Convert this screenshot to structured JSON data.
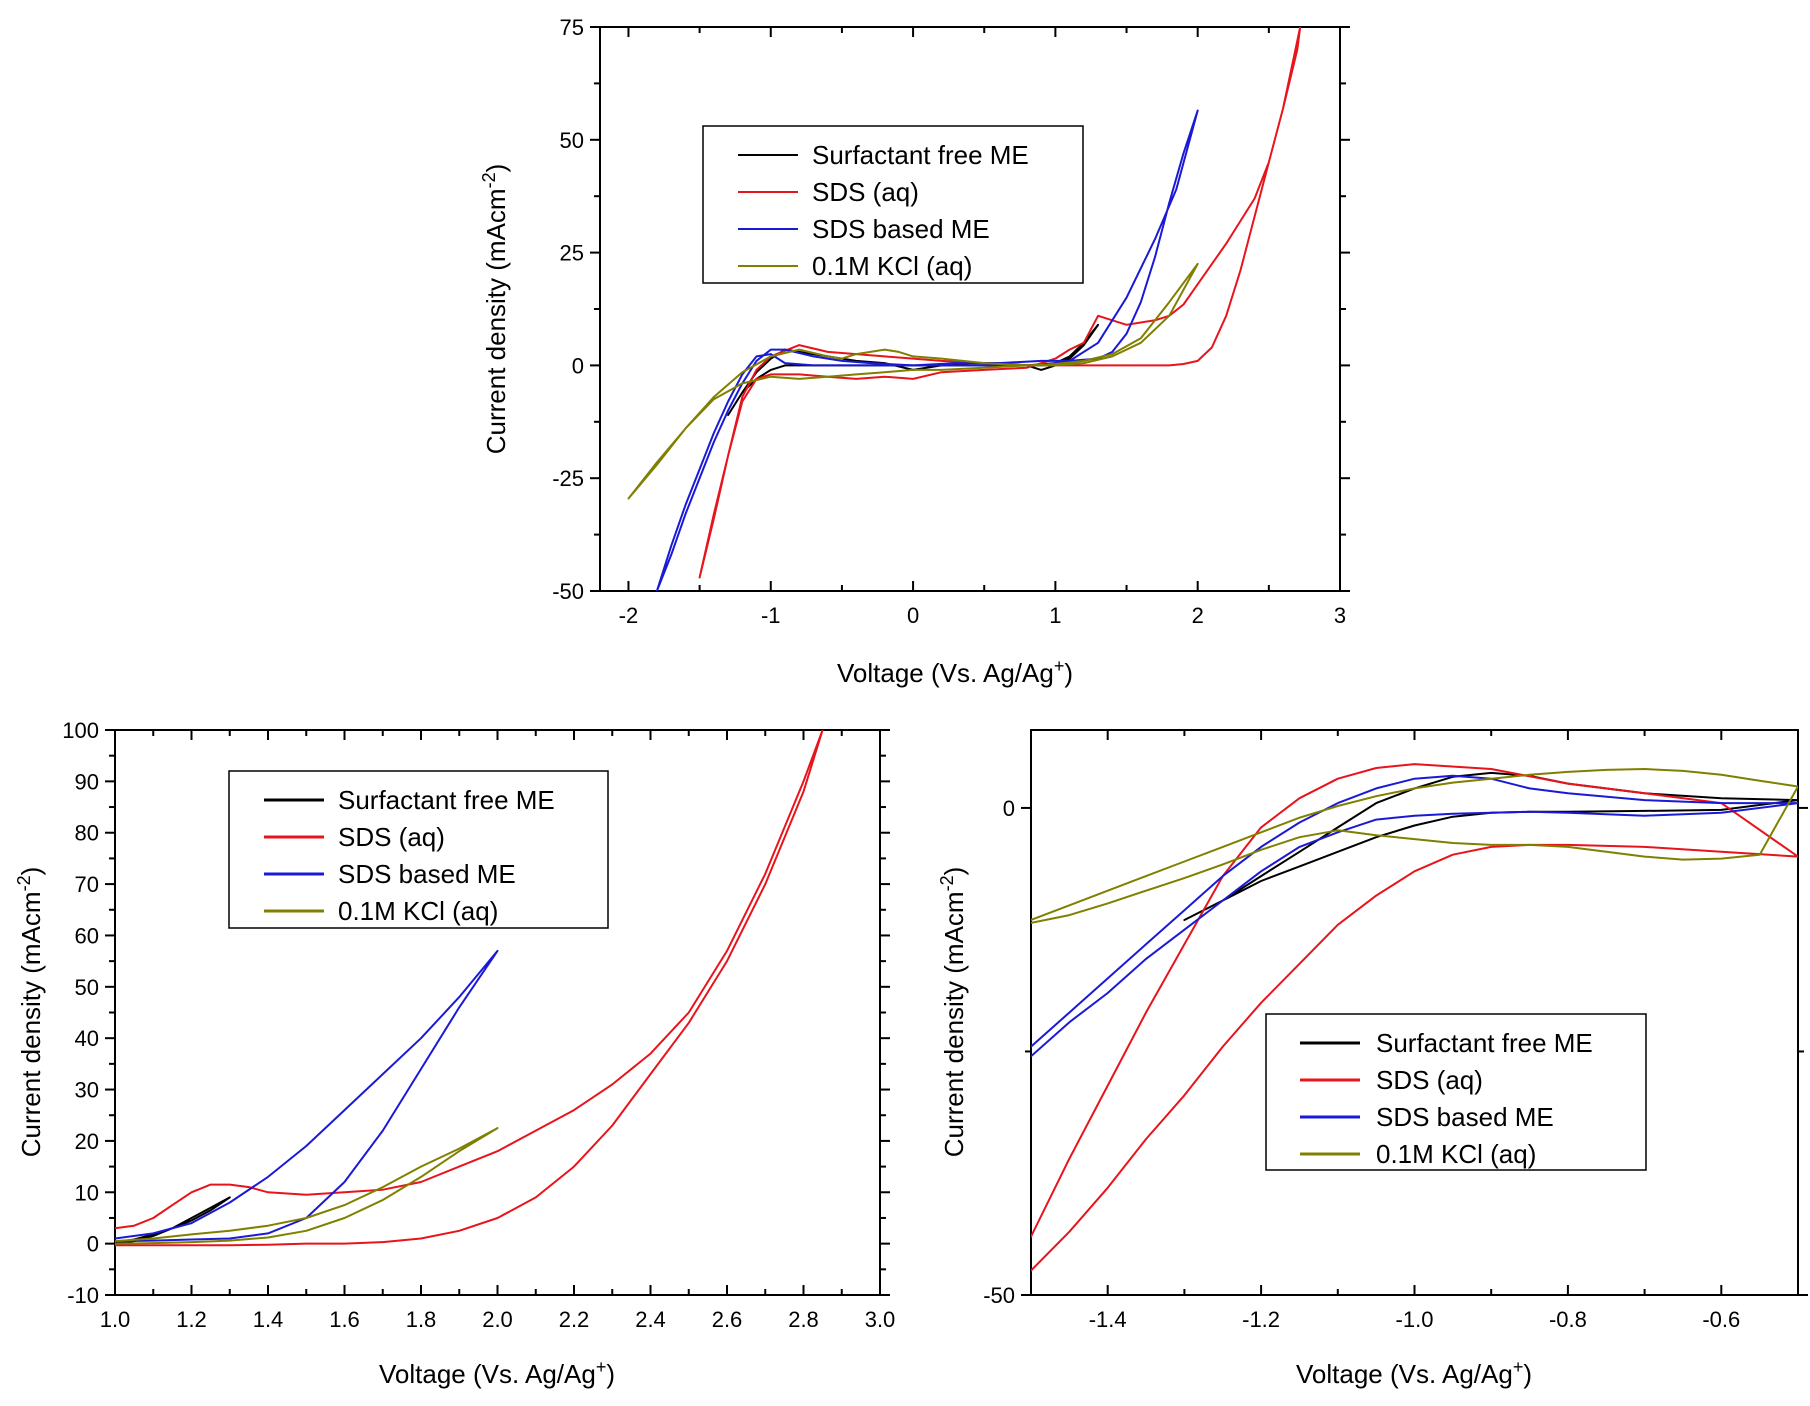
{
  "chart_data": [
    {
      "type": "line",
      "id": "top",
      "xlabel": "Voltage (Vs. Ag/Ag",
      "xlabel_sup": "+",
      "xlabel_end": ")",
      "ylabel": "Current density (mAcm",
      "ylabel_sup": "-2",
      "ylabel_end": ")",
      "xlim": [
        -2.2,
        3
      ],
      "ylim": [
        -50,
        75
      ],
      "xticks": [
        -2,
        -1,
        0,
        1,
        2,
        3
      ],
      "xtick_labels": [
        "-2",
        "-1",
        "0",
        "1",
        "2",
        "3"
      ],
      "yticks": [
        -50,
        -25,
        0,
        25,
        50,
        75
      ],
      "ytick_labels": [
        "-50",
        "-25",
        "0",
        "25",
        "50",
        "75"
      ],
      "legend_position": "upper-left",
      "series": [
        {
          "name": "Surfactant free ME",
          "color": "#000000",
          "x": [
            -1.3,
            -1.2,
            -1.1,
            -1.0,
            -0.9,
            -0.8,
            -0.6,
            -0.4,
            -0.2,
            0,
            0.2,
            0.4,
            0.6,
            0.8,
            0.9,
            1.0,
            1.1,
            1.2,
            1.3,
            1.2,
            1.1,
            1.0,
            0.8,
            0.6,
            0.4,
            0.2,
            0,
            -0.2,
            -0.4,
            -0.6,
            -0.8,
            -0.9,
            -1.0,
            -1.1,
            -1.2,
            -1.3
          ],
          "y": [
            -11,
            -6,
            -1.5,
            1.5,
            3.5,
            3,
            2,
            1,
            0.5,
            -1,
            0,
            0.5,
            0.5,
            0,
            -1,
            0,
            1.5,
            4.5,
            9,
            5,
            2,
            0.5,
            0,
            0,
            0,
            0,
            0,
            0,
            0,
            0,
            0,
            0,
            -1,
            -3,
            -6,
            -11
          ]
        },
        {
          "name": "SDS (aq)",
          "color": "#e8141c",
          "x": [
            -1.5,
            -1.4,
            -1.3,
            -1.2,
            -1.1,
            -1.0,
            -0.8,
            -0.6,
            -0.4,
            -0.2,
            0,
            0.2,
            0.5,
            0.8,
            1.0,
            1.1,
            1.2,
            1.3,
            1.4,
            1.5,
            1.6,
            1.7,
            1.8,
            1.9,
            2.0,
            2.2,
            2.4,
            2.5,
            2.6,
            2.7,
            2.72,
            2.6,
            2.5,
            2.4,
            2.3,
            2.2,
            2.1,
            2.0,
            1.9,
            1.8,
            1.6,
            1.4,
            1.2,
            1.0,
            0.8,
            0.5,
            0.2,
            0,
            -0.2,
            -0.4,
            -0.6,
            -0.8,
            -1.0,
            -1.1,
            -1.2,
            -1.3,
            -1.4,
            -1.5
          ],
          "y": [
            -47,
            -33,
            -20,
            -8,
            -3,
            -2,
            -2,
            -2.5,
            -3,
            -2.5,
            -3,
            -1.5,
            -1,
            -0.5,
            1.5,
            3.5,
            5,
            11,
            10,
            9,
            9.5,
            10,
            11,
            13.5,
            18,
            27,
            37,
            45,
            57,
            70,
            75,
            57,
            45,
            33,
            21,
            11,
            4,
            1,
            0.3,
            0,
            0,
            0,
            0,
            0,
            0,
            0.5,
            1,
            1.5,
            2,
            2.5,
            3,
            4.5,
            2,
            -1,
            -7,
            -20,
            -34,
            -47
          ]
        },
        {
          "name": "SDS based ME",
          "color": "#1a1ad6",
          "x": [
            -1.8,
            -1.7,
            -1.6,
            -1.5,
            -1.4,
            -1.3,
            -1.2,
            -1.1,
            -1.0,
            -0.9,
            -0.7,
            -0.5,
            -0.3,
            0,
            0.3,
            0.6,
            0.9,
            1.1,
            1.3,
            1.5,
            1.7,
            1.85,
            2.0,
            1.9,
            1.8,
            1.7,
            1.6,
            1.5,
            1.4,
            1.3,
            1.1,
            0.9,
            0.6,
            0.3,
            0,
            -0.3,
            -0.5,
            -0.7,
            -0.9,
            -1.0,
            -1.1,
            -1.2,
            -1.3,
            -1.4,
            -1.5,
            -1.6,
            -1.7,
            -1.8
          ],
          "y": [
            -50,
            -42,
            -33,
            -25,
            -17,
            -10,
            -4,
            1,
            3.5,
            3.5,
            2,
            1,
            0.5,
            0,
            0,
            0,
            0,
            1,
            5,
            15,
            28,
            39,
            56.5,
            47,
            36,
            24,
            14,
            7,
            3,
            1.5,
            1,
            1,
            0.5,
            0.5,
            0,
            0,
            0,
            0,
            0.5,
            2.5,
            2,
            -2,
            -8,
            -15,
            -23,
            -31,
            -40,
            -50
          ]
        },
        {
          "name": "0.1M KCl (aq)",
          "color": "#808000",
          "x": [
            -2.0,
            -1.8,
            -1.6,
            -1.4,
            -1.2,
            -1.0,
            -0.8,
            -0.6,
            -0.5,
            -0.4,
            -0.3,
            -0.2,
            -0.1,
            0,
            0.2,
            0.5,
            0.8,
            1.0,
            1.2,
            1.4,
            1.6,
            1.8,
            2.0,
            1.8,
            1.6,
            1.4,
            1.2,
            1.0,
            0.8,
            0.5,
            0.2,
            0,
            -0.2,
            -0.4,
            -0.6,
            -0.8,
            -1.0,
            -1.2,
            -1.4,
            -1.6,
            -1.8,
            -2.0
          ],
          "y": [
            -29.5,
            -22,
            -14,
            -7,
            -1.5,
            2,
            3.5,
            2,
            1.5,
            2.5,
            3,
            3.5,
            3,
            2,
            1.5,
            0.5,
            0,
            0,
            0.5,
            2,
            5,
            11,
            22.5,
            14,
            6,
            2.5,
            1,
            0.3,
            0,
            -0.5,
            -1,
            -1,
            -1.5,
            -2,
            -2.5,
            -3,
            -2.5,
            -4,
            -7.5,
            -14,
            -21.5,
            -29.5
          ]
        }
      ]
    },
    {
      "type": "line",
      "id": "bottom-left",
      "xlabel": "Voltage (Vs. Ag/Ag",
      "xlabel_sup": "+",
      "xlabel_end": ")",
      "ylabel": "Current density (mAcm",
      "ylabel_sup": "-2",
      "ylabel_end": ")",
      "xlim": [
        1.0,
        3.0
      ],
      "ylim": [
        -10,
        100
      ],
      "xticks": [
        1.0,
        1.2,
        1.4,
        1.6,
        1.8,
        2.0,
        2.2,
        2.4,
        2.6,
        2.8,
        3.0
      ],
      "xtick_labels": [
        "1.0",
        "1.2",
        "1.4",
        "1.6",
        "1.8",
        "2.0",
        "2.2",
        "2.4",
        "2.6",
        "2.8",
        "3.0"
      ],
      "yticks": [
        -10,
        0,
        10,
        20,
        30,
        40,
        50,
        60,
        70,
        80,
        90,
        100
      ],
      "ytick_labels": [
        "-10",
        "0",
        "10",
        "20",
        "30",
        "40",
        "50",
        "60",
        "70",
        "80",
        "90",
        "100"
      ],
      "legend_position": "upper-left",
      "series": [
        {
          "name": "Surfactant free ME",
          "color": "#000000",
          "x": [
            1.0,
            1.05,
            1.1,
            1.15,
            1.2,
            1.25,
            1.3,
            1.25,
            1.2,
            1.15,
            1.1,
            1.05,
            1.0
          ],
          "y": [
            0,
            0.5,
            1.5,
            3,
            5,
            7,
            9,
            6.5,
            4.5,
            3,
            1.8,
            0.8,
            0.2
          ]
        },
        {
          "name": "SDS (aq)",
          "color": "#e8141c",
          "x": [
            1.0,
            1.05,
            1.1,
            1.15,
            1.2,
            1.25,
            1.3,
            1.35,
            1.4,
            1.5,
            1.6,
            1.7,
            1.8,
            1.9,
            2.0,
            2.1,
            2.2,
            2.3,
            2.4,
            2.5,
            2.6,
            2.7,
            2.8,
            2.85,
            2.8,
            2.7,
            2.6,
            2.5,
            2.4,
            2.3,
            2.2,
            2.1,
            2.0,
            1.9,
            1.8,
            1.7,
            1.6,
            1.5,
            1.4,
            1.3,
            1.2,
            1.1,
            1.0
          ],
          "y": [
            3,
            3.5,
            5,
            7.5,
            10,
            11.5,
            11.5,
            11,
            10,
            9.5,
            10,
            10.5,
            12,
            15,
            18,
            22,
            26,
            31,
            37,
            45,
            57,
            72,
            90,
            100,
            88,
            70,
            55,
            43,
            33,
            23,
            15,
            9,
            5,
            2.5,
            1,
            0.3,
            0,
            0,
            -0.2,
            -0.3,
            -0.3,
            -0.3,
            -0.3
          ]
        },
        {
          "name": "SDS based ME",
          "color": "#1a1ad6",
          "x": [
            1.0,
            1.1,
            1.2,
            1.3,
            1.4,
            1.5,
            1.6,
            1.7,
            1.8,
            1.9,
            2.0,
            1.9,
            1.8,
            1.7,
            1.6,
            1.5,
            1.4,
            1.3,
            1.2,
            1.1,
            1.0
          ],
          "y": [
            1,
            2,
            4,
            8,
            13,
            19,
            26,
            33,
            40,
            48,
            57,
            46,
            34,
            22,
            12,
            5,
            2,
            1,
            0.8,
            0.6,
            0.5
          ]
        },
        {
          "name": "0.1M KCl (aq)",
          "color": "#808000",
          "x": [
            1.0,
            1.1,
            1.2,
            1.3,
            1.4,
            1.5,
            1.6,
            1.7,
            1.8,
            1.9,
            2.0,
            1.9,
            1.8,
            1.7,
            1.6,
            1.5,
            1.4,
            1.3,
            1.2,
            1.1,
            1.0
          ],
          "y": [
            0.5,
            1,
            1.8,
            2.5,
            3.5,
            5,
            7.5,
            11,
            15,
            18.5,
            22.5,
            18,
            13,
            8.5,
            5,
            2.5,
            1.2,
            0.6,
            0.3,
            0.1,
            0
          ]
        }
      ]
    },
    {
      "type": "line",
      "id": "bottom-right",
      "xlabel": "Voltage (Vs. Ag/Ag",
      "xlabel_sup": "+",
      "xlabel_end": ")",
      "ylabel": "Current density (mAcm",
      "ylabel_sup": "-2",
      "ylabel_end": ")",
      "xlim": [
        -1.5,
        -0.5
      ],
      "ylim": [
        -50,
        8
      ],
      "xticks": [
        -1.4,
        -1.2,
        -1.0,
        -0.8,
        -0.6
      ],
      "xtick_labels": [
        "-1.4",
        "-1.2",
        "-1.0",
        "-0.8",
        "-0.6"
      ],
      "yticks": [
        -50,
        0
      ],
      "ytick_labels": [
        "-50",
        "0"
      ],
      "legend_position": "lower-center",
      "series": [
        {
          "name": "Surfactant free ME",
          "color": "#000000",
          "x": [
            -1.3,
            -1.25,
            -1.2,
            -1.15,
            -1.1,
            -1.05,
            -1.0,
            -0.95,
            -0.9,
            -0.85,
            -0.8,
            -0.7,
            -0.6,
            -0.5,
            -0.6,
            -0.7,
            -0.8,
            -0.85,
            -0.9,
            -0.95,
            -1.0,
            -1.05,
            -1.1,
            -1.15,
            -1.2,
            -1.25,
            -1.3
          ],
          "y": [
            -11.5,
            -9.5,
            -7,
            -4.5,
            -2,
            0.5,
            2,
            3.2,
            3.6,
            3.3,
            2.5,
            1.5,
            1,
            0.8,
            -0.2,
            -0.3,
            -0.4,
            -0.4,
            -0.5,
            -0.9,
            -1.8,
            -3,
            -4.5,
            -6,
            -7.5,
            -9.5,
            -11.5
          ]
        },
        {
          "name": "SDS (aq)",
          "color": "#e8141c",
          "x": [
            -1.5,
            -1.45,
            -1.4,
            -1.35,
            -1.3,
            -1.25,
            -1.2,
            -1.15,
            -1.1,
            -1.05,
            -1.0,
            -0.95,
            -0.9,
            -0.85,
            -0.8,
            -0.7,
            -0.6,
            -0.5,
            -0.6,
            -0.7,
            -0.8,
            -0.9,
            -1.0,
            -1.05,
            -1.1,
            -1.15,
            -1.2,
            -1.25,
            -1.3,
            -1.35,
            -1.4,
            -1.45,
            -1.5
          ],
          "y": [
            -47.5,
            -43.5,
            -39,
            -34,
            -29.5,
            -24.5,
            -20,
            -16,
            -12,
            -9,
            -6.5,
            -4.8,
            -4,
            -3.8,
            -3.8,
            -4,
            -4.5,
            -5,
            0.5,
            1.5,
            2.5,
            4,
            4.5,
            4.1,
            3,
            1,
            -2,
            -7,
            -14,
            -21,
            -28.5,
            -36,
            -44
          ]
        },
        {
          "name": "SDS based ME",
          "color": "#1a1ad6",
          "x": [
            -1.5,
            -1.45,
            -1.4,
            -1.35,
            -1.3,
            -1.25,
            -1.2,
            -1.15,
            -1.1,
            -1.05,
            -1.0,
            -0.95,
            -0.9,
            -0.85,
            -0.8,
            -0.7,
            -0.6,
            -0.5,
            -0.6,
            -0.7,
            -0.8,
            -0.85,
            -0.9,
            -0.95,
            -1.0,
            -1.05,
            -1.1,
            -1.15,
            -1.2,
            -1.25,
            -1.3,
            -1.35,
            -1.4,
            -1.45,
            -1.5
          ],
          "y": [
            -24.5,
            -21,
            -17.5,
            -14,
            -10.5,
            -7,
            -4,
            -1.5,
            0.5,
            2,
            3,
            3.3,
            3,
            2,
            1.5,
            0.8,
            0.5,
            0.5,
            -0.5,
            -0.8,
            -0.5,
            -0.4,
            -0.5,
            -0.6,
            -0.8,
            -1.2,
            -2.5,
            -4,
            -6.5,
            -9.5,
            -12.5,
            -15.5,
            -19,
            -22,
            -25.5
          ]
        },
        {
          "name": "0.1M KCl (aq)",
          "color": "#808000",
          "x": [
            -1.5,
            -1.45,
            -1.4,
            -1.35,
            -1.3,
            -1.25,
            -1.2,
            -1.15,
            -1.1,
            -1.05,
            -1.0,
            -0.95,
            -0.9,
            -0.85,
            -0.8,
            -0.75,
            -0.7,
            -0.65,
            -0.6,
            -0.55,
            -0.5,
            -0.55,
            -0.6,
            -0.65,
            -0.7,
            -0.75,
            -0.8,
            -0.85,
            -0.9,
            -0.95,
            -1.0,
            -1.05,
            -1.1,
            -1.15,
            -1.2,
            -1.25,
            -1.3,
            -1.35,
            -1.4,
            -1.45,
            -1.5
          ],
          "y": [
            -11.5,
            -10,
            -8.5,
            -7,
            -5.5,
            -4,
            -2.5,
            -1,
            0.2,
            1.2,
            2,
            2.6,
            3,
            3.4,
            3.7,
            3.9,
            4,
            3.8,
            3.4,
            2.8,
            2.2,
            -4.8,
            -5.2,
            -5.3,
            -5,
            -4.5,
            -4,
            -3.8,
            -3.8,
            -3.6,
            -3.2,
            -2.8,
            -2.3,
            -3,
            -4.3,
            -5.8,
            -7.2,
            -8.5,
            -9.8,
            -11,
            -11.8
          ]
        }
      ]
    }
  ]
}
